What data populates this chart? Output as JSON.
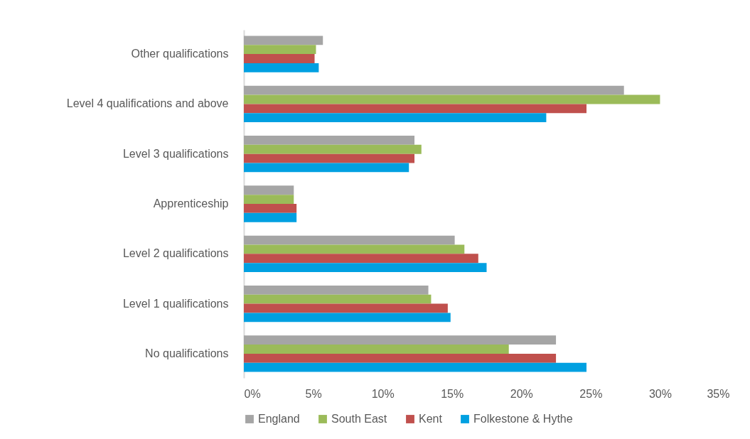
{
  "chart_data": {
    "type": "bar",
    "orientation": "horizontal",
    "categories": [
      "Other qualifications",
      "Level 4 qualifications and above",
      "Level 3 qualifications",
      "Apprenticeship",
      "Level 2 qualifications",
      "Level 1 qualifications",
      "No qualifications"
    ],
    "series": [
      {
        "name": "England",
        "color": "#a5a5a5",
        "values": [
          5.7,
          27.4,
          12.3,
          3.6,
          15.2,
          13.3,
          22.5
        ]
      },
      {
        "name": "South East",
        "color": "#9bbb59",
        "values": [
          5.2,
          30.0,
          12.8,
          3.6,
          15.9,
          13.5,
          19.1
        ]
      },
      {
        "name": "Kent",
        "color": "#c0504d",
        "values": [
          5.1,
          24.7,
          12.3,
          3.8,
          16.9,
          14.7,
          22.5
        ]
      },
      {
        "name": "Folkestone & Hythe",
        "color": "#00a0e1",
        "values": [
          5.4,
          21.8,
          11.9,
          3.8,
          17.5,
          14.9,
          24.7
        ]
      }
    ],
    "xlim": [
      0,
      35
    ],
    "xticks": [
      {
        "value": 0,
        "label": "0%"
      },
      {
        "value": 5,
        "label": "5%"
      },
      {
        "value": 10,
        "label": "10%"
      },
      {
        "value": 15,
        "label": "15%"
      },
      {
        "value": 20,
        "label": "20%"
      },
      {
        "value": 25,
        "label": "25%"
      },
      {
        "value": 30,
        "label": "30%"
      },
      {
        "value": 35,
        "label": "35%"
      }
    ],
    "grid": false,
    "legend": "bottom"
  }
}
